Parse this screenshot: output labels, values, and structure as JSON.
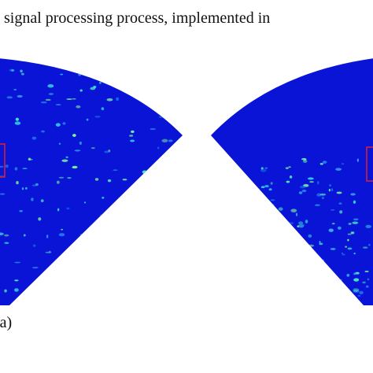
{
  "caption_fragment": "signal processing process, implemented in",
  "panel_label": "(a)"
}
